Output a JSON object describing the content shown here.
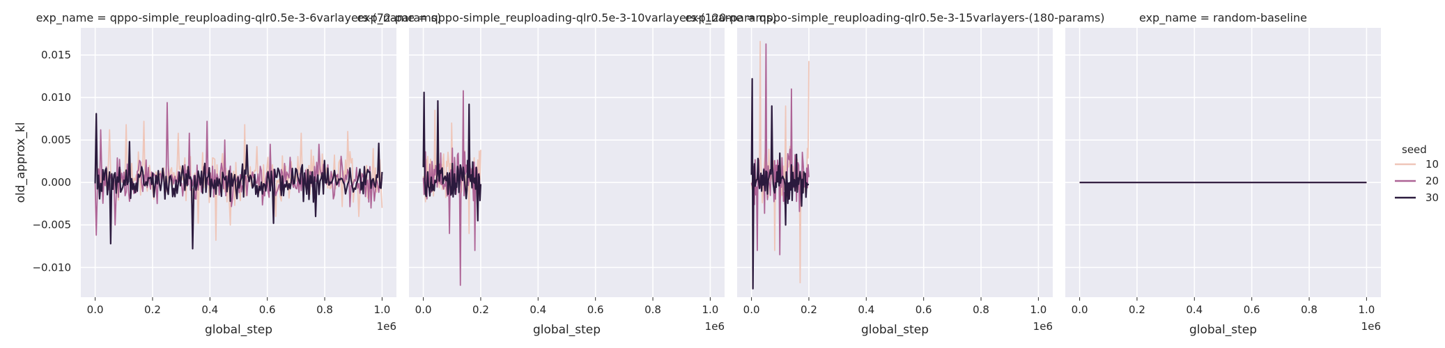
{
  "chart_data": {
    "type": "line",
    "ylabel": "old_approx_kl",
    "xlabel": "global_step",
    "x_offset_label": "1e6",
    "ylim": [
      -0.0135,
      0.0182
    ],
    "xlim": [
      -0.05,
      1.05
    ],
    "x_ticks": [
      0.0,
      0.2,
      0.4,
      0.6,
      0.8,
      1.0
    ],
    "x_tick_labels": [
      "0.0",
      "0.2",
      "0.4",
      "0.6",
      "0.8",
      "1.0"
    ],
    "y_ticks": [
      -0.01,
      -0.005,
      0.0,
      0.005,
      0.01,
      0.015
    ],
    "y_tick_labels": [
      "−0.010",
      "−0.005",
      "0.000",
      "0.005",
      "0.010",
      "0.015"
    ],
    "grid": true,
    "legend": {
      "title": "seed",
      "placement": "right",
      "entries": [
        {
          "label": "10",
          "color": "#efc6b9"
        },
        {
          "label": "20",
          "color": "#ad6395"
        },
        {
          "label": "30",
          "color": "#2b1a3d"
        }
      ]
    },
    "facets": [
      {
        "title": "exp_name = qppo-simple_reuploading-qlr0.5e-3-6varlayers-(72-params)",
        "x_end": 1.0,
        "series": [
          {
            "name": "10",
            "color": "#efc6b9",
            "n": 260,
            "amp": 0.0026,
            "bias": 0.0005,
            "peaks": [
              [
                0.05,
                0.0062
              ],
              [
                0.11,
                0.0068
              ],
              [
                0.17,
                0.0072
              ],
              [
                0.29,
                0.0058
              ],
              [
                0.36,
                -0.0048
              ],
              [
                0.42,
                -0.0068
              ],
              [
                0.47,
                -0.005
              ],
              [
                0.52,
                0.0068
              ],
              [
                0.63,
                -0.004
              ],
              [
                0.72,
                0.0058
              ],
              [
                0.88,
                0.006
              ],
              [
                0.92,
                -0.004
              ],
              [
                0.97,
                0.004
              ]
            ]
          },
          {
            "name": "20",
            "color": "#ad6395",
            "n": 260,
            "amp": 0.0022,
            "bias": 0.0002,
            "peaks": [
              [
                0.005,
                -0.0062
              ],
              [
                0.02,
                0.0062
              ],
              [
                0.07,
                -0.005
              ],
              [
                0.25,
                0.0094
              ],
              [
                0.33,
                0.0058
              ],
              [
                0.39,
                0.0072
              ],
              [
                0.45,
                0.005
              ],
              [
                0.61,
                0.0045
              ],
              [
                0.78,
                0.0045
              ],
              [
                0.96,
                -0.003
              ]
            ]
          },
          {
            "name": "30",
            "color": "#2b1a3d",
            "n": 260,
            "amp": 0.0018,
            "bias": 0.0001,
            "peaks": [
              [
                0.004,
                0.0081
              ],
              [
                0.055,
                -0.0072
              ],
              [
                0.12,
                0.0048
              ],
              [
                0.34,
                -0.0078
              ],
              [
                0.53,
                0.0044
              ],
              [
                0.62,
                -0.0048
              ],
              [
                0.77,
                -0.004
              ],
              [
                0.99,
                0.0046
              ]
            ]
          }
        ]
      },
      {
        "title": "exp_name = qppo-simple_reuploading-qlr0.5e-3-10varlayers-(120-params)",
        "x_end": 0.2,
        "series": [
          {
            "name": "10",
            "color": "#efc6b9",
            "n": 80,
            "amp": 0.0028,
            "bias": 0.0005,
            "peaks": [
              [
                0.04,
                0.0085
              ],
              [
                0.1,
                0.007
              ],
              [
                0.16,
                -0.006
              ]
            ]
          },
          {
            "name": "20",
            "color": "#ad6395",
            "n": 80,
            "amp": 0.0028,
            "bias": 0.0003,
            "peaks": [
              [
                0.13,
                -0.0121
              ],
              [
                0.14,
                0.0108
              ],
              [
                0.09,
                -0.006
              ],
              [
                0.18,
                -0.008
              ]
            ]
          },
          {
            "name": "30",
            "color": "#2b1a3d",
            "n": 80,
            "amp": 0.0022,
            "bias": 0.0002,
            "peaks": [
              [
                0.003,
                0.0106
              ],
              [
                0.05,
                0.0096
              ],
              [
                0.16,
                0.0092
              ],
              [
                0.19,
                -0.0045
              ]
            ]
          }
        ]
      },
      {
        "title": "exp_name = qppo-simple_reuploading-qlr0.5e-3-15varlayers-(180-params)",
        "x_end": 0.2,
        "series": [
          {
            "name": "10",
            "color": "#efc6b9",
            "n": 80,
            "amp": 0.0032,
            "bias": 0.0008,
            "peaks": [
              [
                0.03,
                0.0166
              ],
              [
                0.2,
                0.0143
              ],
              [
                0.08,
                -0.008
              ],
              [
                0.17,
                -0.0118
              ],
              [
                0.12,
                0.009
              ]
            ]
          },
          {
            "name": "20",
            "color": "#ad6395",
            "n": 80,
            "amp": 0.003,
            "bias": 0.0004,
            "peaks": [
              [
                0.05,
                0.0163
              ],
              [
                0.02,
                -0.008
              ],
              [
                0.1,
                -0.0085
              ],
              [
                0.14,
                0.011
              ]
            ]
          },
          {
            "name": "30",
            "color": "#2b1a3d",
            "n": 80,
            "amp": 0.0024,
            "bias": 0.0002,
            "peaks": [
              [
                0.004,
                -0.0125
              ],
              [
                0.003,
                0.0122
              ],
              [
                0.07,
                0.009
              ],
              [
                0.12,
                -0.005
              ]
            ]
          }
        ]
      },
      {
        "title": "exp_name = random-baseline",
        "x_end": 1.0,
        "series": [
          {
            "name": "10",
            "color": "#efc6b9",
            "n": 2,
            "amp": 0,
            "bias": 0,
            "peaks": []
          },
          {
            "name": "20",
            "color": "#ad6395",
            "n": 2,
            "amp": 0,
            "bias": 0,
            "peaks": []
          },
          {
            "name": "30",
            "color": "#2b1a3d",
            "n": 2,
            "amp": 0,
            "bias": 0,
            "peaks": []
          }
        ]
      }
    ]
  }
}
